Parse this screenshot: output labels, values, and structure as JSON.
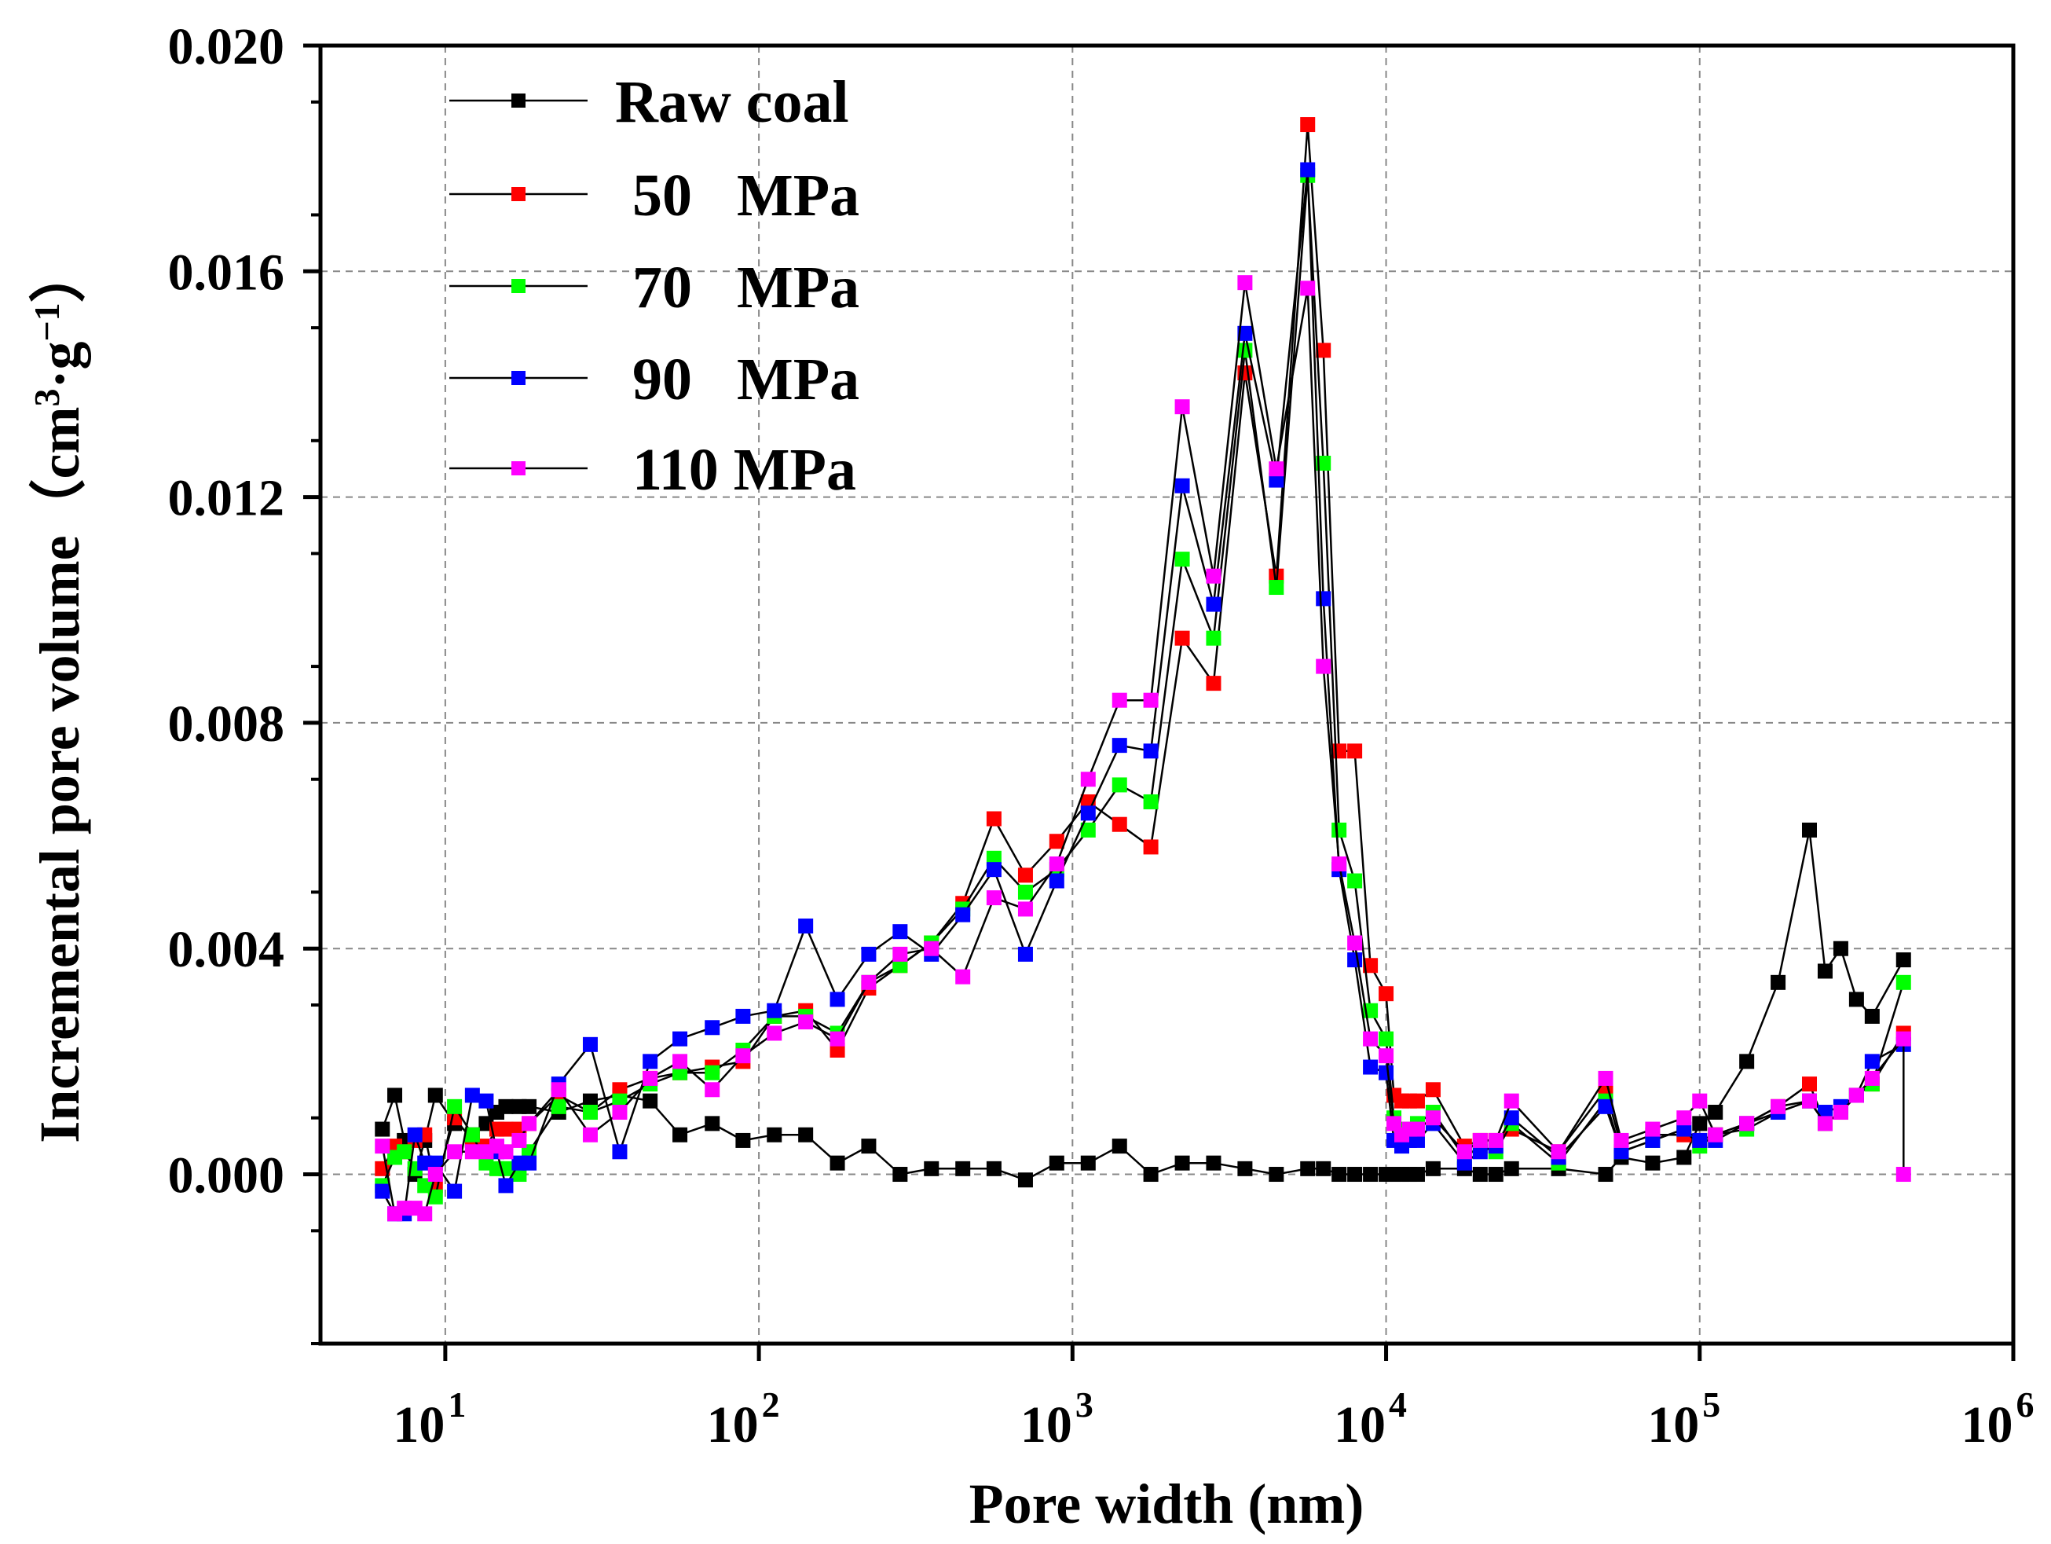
{
  "chart_data": {
    "type": "line",
    "xscale": "log",
    "xlabel": "Pore width (nm)",
    "ylabel": "Incremental pore volume（cm³·g⁻¹）",
    "ylabel_parts": {
      "main": "Incremental pore volume（cm",
      "exp1": "3",
      "mid": "·g",
      "exp2": "−1",
      "close": "）"
    },
    "xlim": [
      4,
      1000000
    ],
    "ylim": [
      -0.003,
      0.02
    ],
    "grid": true,
    "legend_position": "top-left",
    "yticks": [
      {
        "value": 0.0,
        "label": "0.000"
      },
      {
        "value": 0.004,
        "label": "0.004"
      },
      {
        "value": 0.008,
        "label": "0.008"
      },
      {
        "value": 0.012,
        "label": "0.012"
      },
      {
        "value": 0.016,
        "label": "0.016"
      },
      {
        "value": 0.02,
        "label": "0.020"
      }
    ],
    "xticks": [
      {
        "value": 10,
        "base": "10",
        "exp": "1"
      },
      {
        "value": 100,
        "base": "10",
        "exp": "2"
      },
      {
        "value": 1000,
        "base": "10",
        "exp": "3"
      },
      {
        "value": 10000,
        "base": "10",
        "exp": "4"
      },
      {
        "value": 100000,
        "base": "10",
        "exp": "5"
      },
      {
        "value": 1000000,
        "base": "10",
        "exp": "6"
      }
    ],
    "x": [
      6.3,
      6.9,
      7.4,
      8.0,
      8.6,
      9.3,
      10.7,
      12.2,
      13.5,
      14.6,
      15.6,
      17.2,
      18.5,
      23,
      29,
      36,
      45,
      56,
      71,
      89,
      112,
      141,
      178,
      224,
      282,
      355,
      447,
      562,
      708,
      891,
      1122,
      1413,
      1778,
      2239,
      2818,
      3548,
      4467,
      5623,
      6310,
      7079,
      7943,
      8913,
      10000,
      10593,
      11220,
      11885,
      12589,
      14125,
      17783,
      19953,
      22387,
      25119,
      35481,
      50119,
      56234,
      70795,
      89125,
      100000,
      112202,
      141254,
      177828,
      223872,
      251189,
      281838,
      316228,
      354813,
      446684
    ],
    "series": [
      {
        "name": "Raw coal",
        "legend_label": "Raw coal",
        "color": "#000000",
        "values": [
          0.0008,
          0.0014,
          0.0006,
          0.0,
          0.0006,
          0.0014,
          0.0009,
          0.0007,
          0.0009,
          0.0011,
          0.0012,
          0.0012,
          0.0012,
          0.0011,
          0.0013,
          0.0014,
          0.0013,
          0.0007,
          0.0009,
          0.0006,
          0.0007,
          0.0007,
          0.0002,
          0.0005,
          0.0,
          0.0001,
          0.0001,
          0.0001,
          -0.0001,
          0.0002,
          0.0002,
          0.0005,
          -0.0,
          0.0002,
          0.0002,
          0.0001,
          -0.0,
          0.0001,
          0.0001,
          0.0,
          0.0,
          0.0,
          0.0,
          0.0,
          0.0,
          0.0,
          0.0,
          0.0001,
          0.0001,
          -0.0,
          0.0,
          0.0001,
          0.0001,
          0.0,
          0.0003,
          0.0002,
          0.0003,
          0.0009,
          0.0011,
          0.002,
          0.0034,
          0.0061,
          0.0036,
          0.004,
          0.0031,
          0.0028,
          0.0038
        ]
      },
      {
        "name": "50 MPa",
        "legend_label": "50   MPa",
        "color": "#ff0000",
        "values": [
          0.0001,
          0.0005,
          0.0004,
          0.0006,
          0.0007,
          -0.0002,
          0.001,
          0.0006,
          0.0005,
          0.0008,
          0.0008,
          0.0008,
          0.0009,
          0.0014,
          0.0011,
          0.0015,
          0.0017,
          0.0018,
          0.0019,
          0.002,
          0.0028,
          0.0029,
          0.0022,
          0.0033,
          0.0037,
          0.0041,
          0.0048,
          0.0063,
          0.0053,
          0.0059,
          0.0066,
          0.0062,
          0.0058,
          0.0095,
          0.0087,
          0.0142,
          0.0106,
          0.0186,
          0.0146,
          0.0075,
          0.0075,
          0.0037,
          0.0032,
          0.0014,
          0.0013,
          0.0013,
          0.0013,
          0.0015,
          0.0005,
          0.0006,
          0.0006,
          0.0008,
          0.0004,
          0.0015,
          0.0005,
          0.0007,
          0.0007,
          0.0006,
          0.0007,
          0.0009,
          0.0012,
          0.0016,
          0.0009,
          0.0011,
          0.0014,
          0.0016,
          0.0025
        ]
      },
      {
        "name": "70 MPa",
        "legend_label": "70   MPa",
        "color": "#00ff00",
        "values": [
          -0.0002,
          0.0003,
          0.0004,
          0.0001,
          -0.0002,
          -0.0004,
          0.0012,
          0.0007,
          0.0002,
          0.0001,
          0.0001,
          0.0,
          0.0004,
          0.0012,
          0.0011,
          0.0013,
          0.0016,
          0.0018,
          0.0018,
          0.0022,
          0.0028,
          0.0028,
          0.0025,
          0.0034,
          0.0037,
          0.0041,
          0.0047,
          0.0056,
          0.005,
          0.0054,
          0.0061,
          0.0069,
          0.0066,
          0.0109,
          0.0095,
          0.0146,
          0.0104,
          0.0177,
          0.0126,
          0.0061,
          0.0052,
          0.0029,
          0.0024,
          0.001,
          0.0008,
          0.0008,
          0.0009,
          0.0011,
          0.0003,
          0.0005,
          0.0004,
          0.0009,
          0.0002,
          0.0013,
          0.0004,
          0.0006,
          0.0008,
          0.0005,
          0.0007,
          0.0008,
          0.0011,
          0.0013,
          0.0009,
          0.0011,
          0.0014,
          0.0016,
          0.0034
        ]
      },
      {
        "name": "90 MPa",
        "legend_label": "90   MPa",
        "color": "#0000ff",
        "values": [
          -0.0003,
          -0.0007,
          -0.0007,
          0.0007,
          0.0002,
          0.0002,
          -0.0003,
          0.0014,
          0.0013,
          0.0004,
          -0.0002,
          0.0002,
          0.0002,
          0.0016,
          0.0023,
          0.0004,
          0.002,
          0.0024,
          0.0026,
          0.0028,
          0.0029,
          0.0044,
          0.0031,
          0.0039,
          0.0043,
          0.0039,
          0.0046,
          0.0054,
          0.0039,
          0.0052,
          0.0064,
          0.0076,
          0.0075,
          0.0122,
          0.0101,
          0.0149,
          0.0123,
          0.0178,
          0.0102,
          0.0054,
          0.0038,
          0.0019,
          0.0018,
          0.0006,
          0.0005,
          0.0006,
          0.0006,
          0.0009,
          0.0002,
          0.0004,
          0.0005,
          0.001,
          0.0003,
          0.0012,
          0.0004,
          0.0006,
          0.0008,
          0.0006,
          0.0006,
          0.0009,
          0.0011,
          0.0013,
          0.0011,
          0.0012,
          0.0014,
          0.002,
          0.0023
        ]
      },
      {
        "name": "110 MPa",
        "legend_label": "110 MPa",
        "color": "#ff00ff",
        "values": [
          0.0005,
          -0.0007,
          -0.0006,
          -0.0006,
          -0.0007,
          0.0,
          0.0004,
          0.0004,
          0.0004,
          0.0005,
          0.0004,
          0.0006,
          0.0009,
          0.0015,
          0.0007,
          0.0011,
          0.0017,
          0.002,
          0.0015,
          0.0021,
          0.0025,
          0.0027,
          0.0024,
          0.0034,
          0.0039,
          0.004,
          0.0035,
          0.0049,
          0.0047,
          0.0055,
          0.007,
          0.0084,
          0.0084,
          0.0136,
          0.0106,
          0.0158,
          0.0125,
          0.0157,
          0.009,
          0.0055,
          0.0041,
          0.0024,
          0.0021,
          0.0009,
          0.0007,
          0.0008,
          0.0008,
          0.001,
          0.0004,
          0.0006,
          0.0006,
          0.0013,
          0.0004,
          0.0017,
          0.0006,
          0.0008,
          0.001,
          0.0013,
          0.0007,
          0.0009,
          0.0012,
          0.0013,
          0.0009,
          0.0011,
          0.0014,
          0.0017,
          0.0024
        ]
      }
    ],
    "series_end_point": {
      "x": 446684,
      "y": 0.0,
      "color": "#ff00ff"
    }
  }
}
